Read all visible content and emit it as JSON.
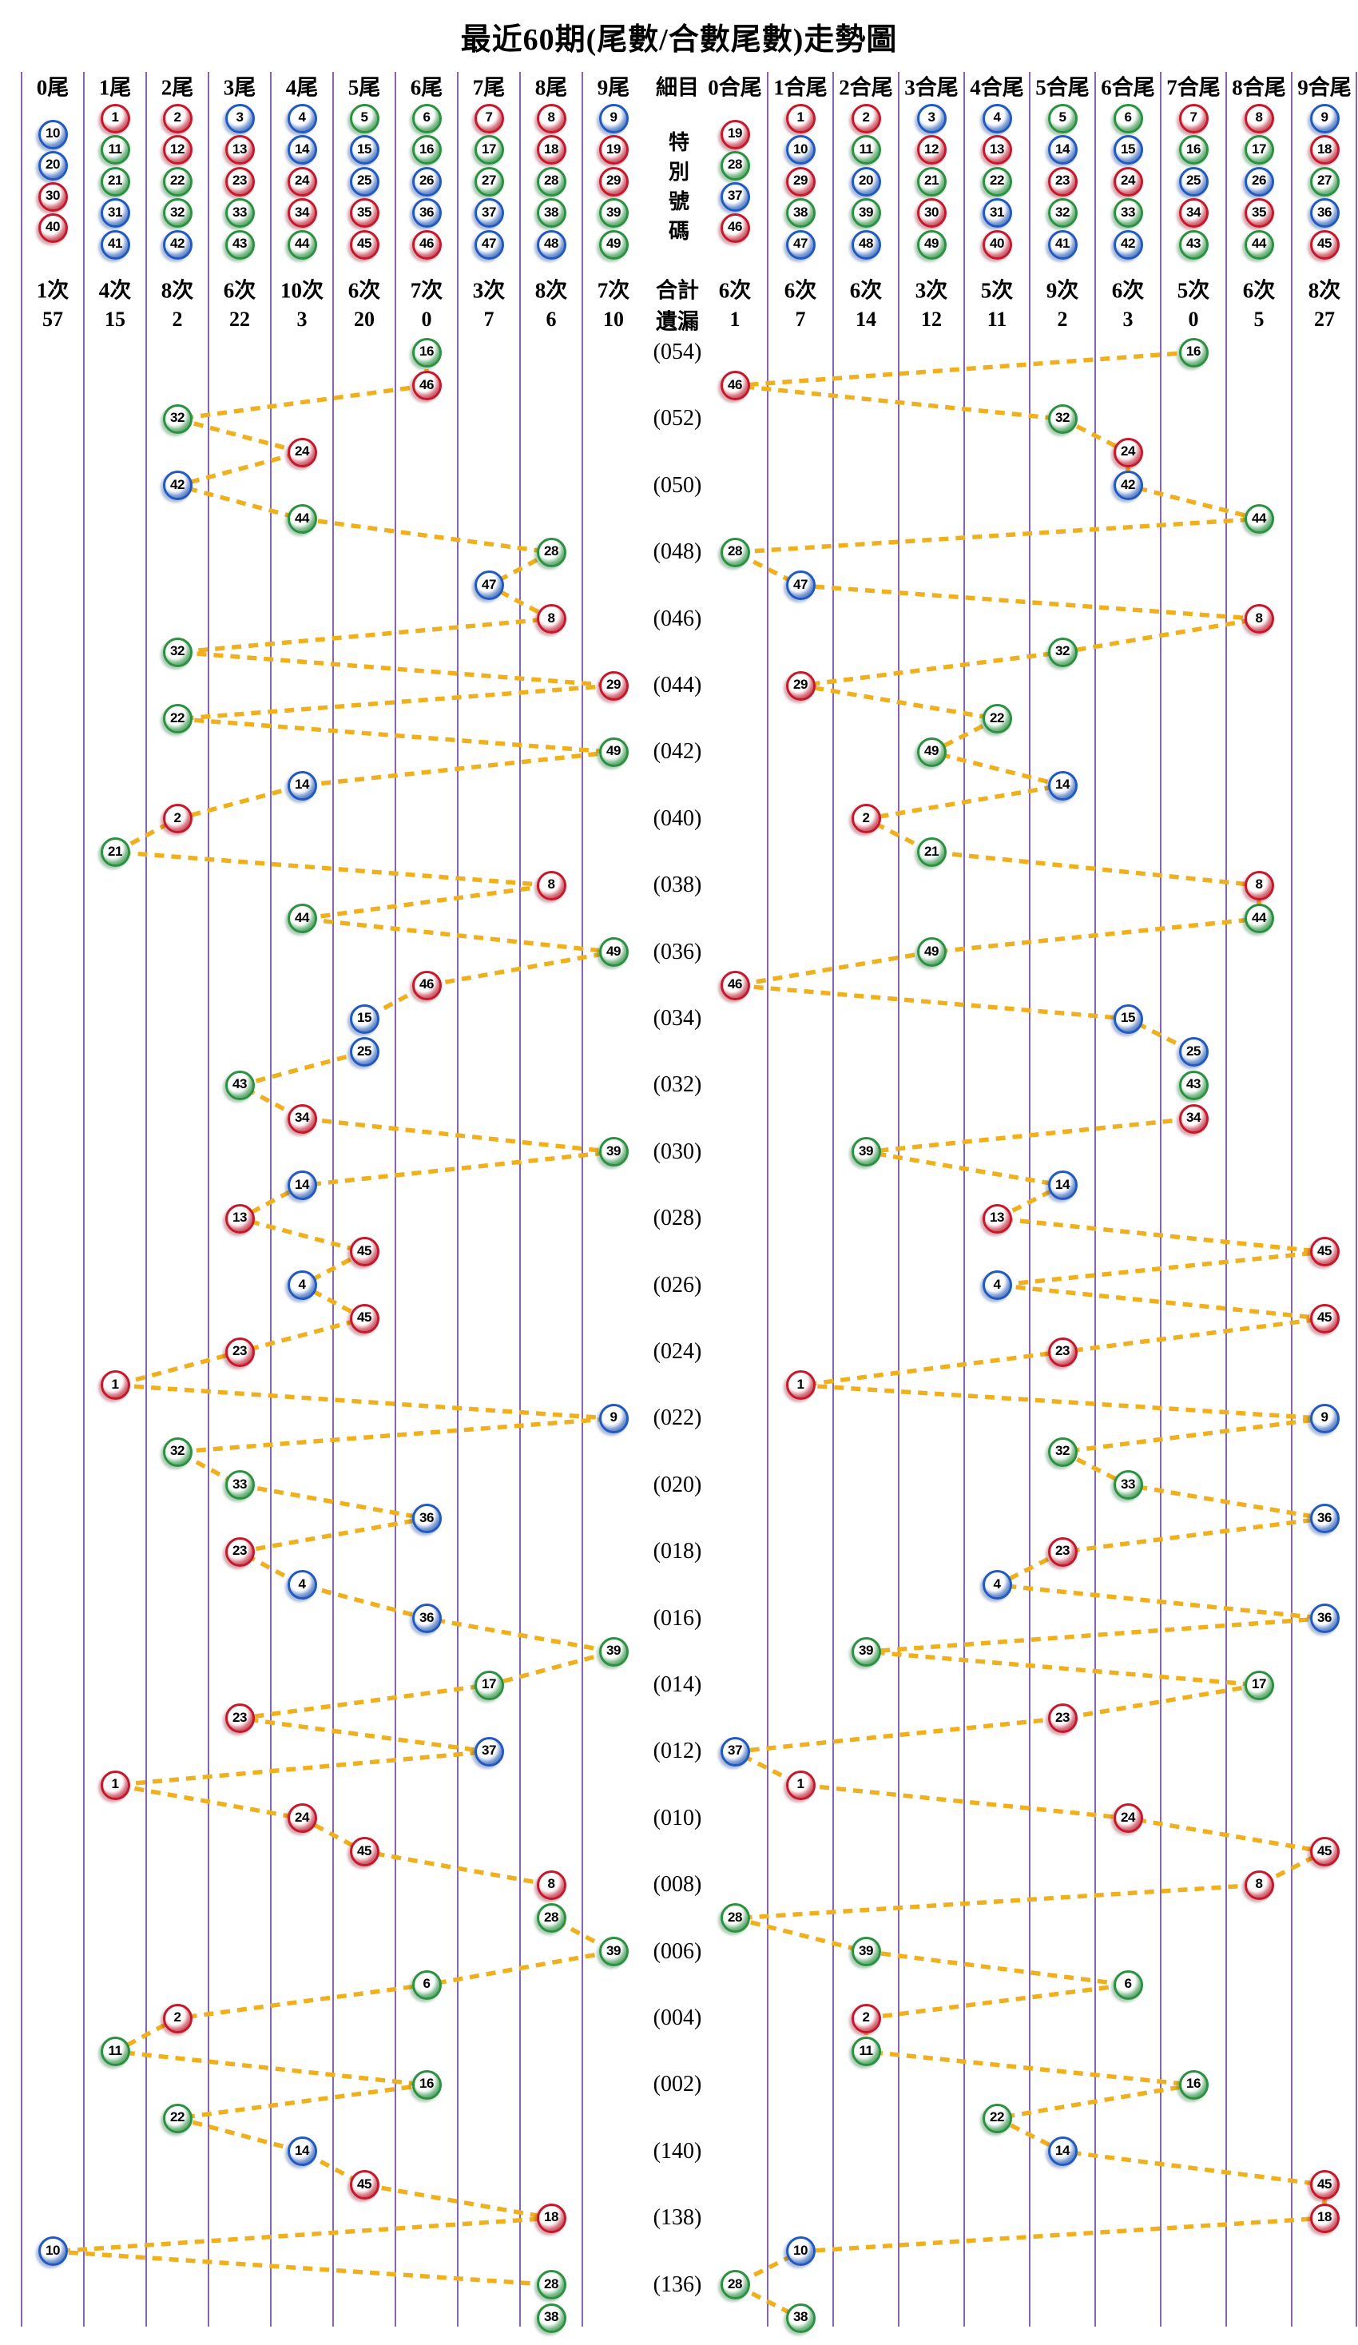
{
  "title": "最近60期(尾數/合數尾數)走勢圖",
  "colors": {
    "red": "#c5182b",
    "red_light": "#eda0a9",
    "blue": "#2159c0",
    "blue_light": "#a8c2ee",
    "green": "#2b9140",
    "green_light": "#a9dcb2",
    "trend_line": "#f0b01e",
    "grid_line": "#6a3d9a",
    "text": "#000000"
  },
  "number_groups": {
    "red": [
      1,
      2,
      7,
      8,
      12,
      13,
      18,
      19,
      23,
      24,
      29,
      30,
      34,
      35,
      40,
      45,
      46
    ],
    "blue": [
      3,
      4,
      9,
      10,
      14,
      15,
      20,
      25,
      26,
      31,
      36,
      37,
      41,
      42,
      47,
      48
    ],
    "green": [
      5,
      6,
      11,
      16,
      17,
      21,
      22,
      27,
      28,
      32,
      33,
      38,
      39,
      43,
      44,
      49
    ]
  },
  "middle": {
    "header": "細目",
    "special_label": "特別號碼",
    "total_label": "合計",
    "miss_label": "遺漏"
  },
  "left_columns": [
    {
      "label": "0尾",
      "balls": [
        10,
        20,
        30,
        40
      ],
      "total": "1次",
      "miss": "57"
    },
    {
      "label": "1尾",
      "balls": [
        1,
        11,
        21,
        31,
        41
      ],
      "total": "4次",
      "miss": "15"
    },
    {
      "label": "2尾",
      "balls": [
        2,
        12,
        22,
        32,
        42
      ],
      "total": "8次",
      "miss": "2"
    },
    {
      "label": "3尾",
      "balls": [
        3,
        13,
        23,
        33,
        43
      ],
      "total": "6次",
      "miss": "22"
    },
    {
      "label": "4尾",
      "balls": [
        4,
        14,
        24,
        34,
        44
      ],
      "total": "10次",
      "miss": "3"
    },
    {
      "label": "5尾",
      "balls": [
        5,
        15,
        25,
        35,
        45
      ],
      "total": "6次",
      "miss": "20"
    },
    {
      "label": "6尾",
      "balls": [
        6,
        16,
        26,
        36,
        46
      ],
      "total": "7次",
      "miss": "0"
    },
    {
      "label": "7尾",
      "balls": [
        7,
        17,
        27,
        37,
        47
      ],
      "total": "3次",
      "miss": "7"
    },
    {
      "label": "8尾",
      "balls": [
        8,
        18,
        28,
        38,
        48
      ],
      "total": "8次",
      "miss": "6"
    },
    {
      "label": "9尾",
      "balls": [
        9,
        19,
        29,
        39,
        49
      ],
      "total": "7次",
      "miss": "10"
    }
  ],
  "right_columns": [
    {
      "label": "0合尾",
      "balls": [
        19,
        28,
        37,
        46
      ],
      "total": "6次",
      "miss": "1"
    },
    {
      "label": "1合尾",
      "balls": [
        1,
        10,
        29,
        38,
        47
      ],
      "total": "6次",
      "miss": "7"
    },
    {
      "label": "2合尾",
      "balls": [
        2,
        11,
        20,
        39,
        48
      ],
      "total": "6次",
      "miss": "14"
    },
    {
      "label": "3合尾",
      "balls": [
        3,
        12,
        21,
        30,
        49
      ],
      "total": "3次",
      "miss": "12"
    },
    {
      "label": "4合尾",
      "balls": [
        4,
        13,
        22,
        31,
        40
      ],
      "total": "5次",
      "miss": "11"
    },
    {
      "label": "5合尾",
      "balls": [
        5,
        14,
        23,
        32,
        41
      ],
      "total": "9次",
      "miss": "2"
    },
    {
      "label": "6合尾",
      "balls": [
        6,
        15,
        24,
        33,
        42
      ],
      "total": "6次",
      "miss": "3"
    },
    {
      "label": "7合尾",
      "balls": [
        7,
        16,
        25,
        34,
        43
      ],
      "total": "5次",
      "miss": "0"
    },
    {
      "label": "8合尾",
      "balls": [
        8,
        17,
        26,
        35,
        44
      ],
      "total": "6次",
      "miss": "5"
    },
    {
      "label": "9合尾",
      "balls": [
        9,
        18,
        27,
        36,
        45
      ],
      "total": "8次",
      "miss": "27"
    }
  ],
  "chart_data": {
    "type": "scatter",
    "title": "最近60期(尾數/合數尾數)走勢圖",
    "xlabel_left_section": "尾數 0-9",
    "xlabel_right_section": "合數尾數 0-9",
    "legend_position": "none",
    "grid": "vertical-only",
    "note": "Each row is one draw period (top = most recent). Left marker column = special number mod 10; right marker column = digit-sum of special number mod 10. Consecutive markers are joined by gold dashed lines.",
    "draws": [
      {
        "num": 16,
        "period": "(054)"
      },
      {
        "num": 46,
        "period": ""
      },
      {
        "num": 32,
        "period": "(052)"
      },
      {
        "num": 24,
        "period": ""
      },
      {
        "num": 42,
        "period": "(050)"
      },
      {
        "num": 44,
        "period": ""
      },
      {
        "num": 28,
        "period": "(048)"
      },
      {
        "num": 47,
        "period": ""
      },
      {
        "num": 8,
        "period": "(046)"
      },
      {
        "num": 32,
        "period": ""
      },
      {
        "num": 29,
        "period": "(044)"
      },
      {
        "num": 22,
        "period": ""
      },
      {
        "num": 49,
        "period": "(042)"
      },
      {
        "num": 14,
        "period": ""
      },
      {
        "num": 2,
        "period": "(040)"
      },
      {
        "num": 21,
        "period": ""
      },
      {
        "num": 8,
        "period": "(038)"
      },
      {
        "num": 44,
        "period": ""
      },
      {
        "num": 49,
        "period": "(036)"
      },
      {
        "num": 46,
        "period": ""
      },
      {
        "num": 15,
        "period": "(034)"
      },
      {
        "num": 25,
        "period": ""
      },
      {
        "num": 43,
        "period": "(032)"
      },
      {
        "num": 34,
        "period": ""
      },
      {
        "num": 39,
        "period": "(030)"
      },
      {
        "num": 14,
        "period": ""
      },
      {
        "num": 13,
        "period": "(028)"
      },
      {
        "num": 45,
        "period": ""
      },
      {
        "num": 4,
        "period": "(026)"
      },
      {
        "num": 45,
        "period": ""
      },
      {
        "num": 23,
        "period": "(024)"
      },
      {
        "num": 1,
        "period": ""
      },
      {
        "num": 9,
        "period": "(022)"
      },
      {
        "num": 32,
        "period": ""
      },
      {
        "num": 33,
        "period": "(020)"
      },
      {
        "num": 36,
        "period": ""
      },
      {
        "num": 23,
        "period": "(018)"
      },
      {
        "num": 4,
        "period": ""
      },
      {
        "num": 36,
        "period": "(016)"
      },
      {
        "num": 39,
        "period": ""
      },
      {
        "num": 17,
        "period": "(014)"
      },
      {
        "num": 23,
        "period": ""
      },
      {
        "num": 37,
        "period": "(012)"
      },
      {
        "num": 1,
        "period": ""
      },
      {
        "num": 24,
        "period": "(010)"
      },
      {
        "num": 45,
        "period": ""
      },
      {
        "num": 8,
        "period": "(008)"
      },
      {
        "num": 28,
        "period": ""
      },
      {
        "num": 39,
        "period": "(006)"
      },
      {
        "num": 6,
        "period": ""
      },
      {
        "num": 2,
        "period": "(004)"
      },
      {
        "num": 11,
        "period": ""
      },
      {
        "num": 16,
        "period": "(002)"
      },
      {
        "num": 22,
        "period": ""
      },
      {
        "num": 14,
        "period": "(140)"
      },
      {
        "num": 45,
        "period": ""
      },
      {
        "num": 18,
        "period": "(138)"
      },
      {
        "num": 10,
        "period": ""
      },
      {
        "num": 28,
        "period": "(136)"
      },
      {
        "num": 38,
        "period": ""
      }
    ]
  }
}
